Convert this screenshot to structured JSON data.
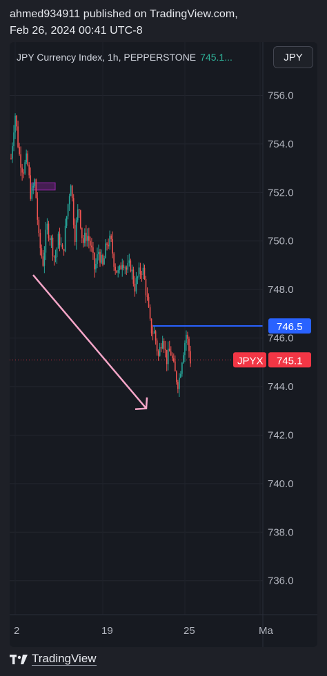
{
  "header": {
    "line1": "ahmed934911 published on TradingView.com,",
    "line2": "Feb 26, 2024 00:41 UTC-8"
  },
  "legend": {
    "symbol": "JPY Currency Index, 1h, PEPPERSTONE",
    "last_value": "745.1..."
  },
  "currency_button": "JPY",
  "footer": {
    "brand": "TradingView"
  },
  "colors": {
    "background": "#171a21",
    "bull": "#26a69a",
    "bear": "#ef5350",
    "horizontal_line": "#2962ff",
    "price_label": "#f23645",
    "arrow": "#f5a6c8",
    "box": "#9c27b0"
  },
  "icons": [
    "tradingview-logo-icon"
  ],
  "chart_data": {
    "type": "candlestick",
    "title": "JPY Currency Index, 1h, PEPPERSTONE",
    "ylim": [
      734.6,
      758.2
    ],
    "y_ticks": [
      756.0,
      754.0,
      752.0,
      750.0,
      748.0,
      746.0,
      744.0,
      742.0,
      740.0,
      738.0,
      736.0
    ],
    "x_tick_labels": [
      "2",
      "19",
      "25",
      "Ma"
    ],
    "grid": true,
    "last_price": 745.1,
    "last_price_label": "745.1",
    "symbol_tag": "JPYX",
    "horizontal_line": {
      "price": 746.5,
      "label": "746.5"
    },
    "close_path": [
      753.4,
      755.3,
      753.6,
      752.9,
      753.4,
      751.8,
      752.5,
      750.0,
      749.1,
      750.6,
      750.1,
      749.2,
      750.2,
      749.4,
      751.1,
      752.5,
      750.2,
      751.5,
      749.9,
      750.3,
      749.8,
      748.8,
      749.6,
      748.9,
      749.9,
      750.0,
      749.0,
      748.6,
      749.3,
      748.8,
      749.0,
      748.1,
      748.6,
      748.9,
      747.8,
      746.4,
      746.2,
      745.2,
      746.2,
      745.1,
      745.5,
      744.6,
      744.1,
      745.3,
      746.2,
      745.1
    ],
    "annotations": [
      {
        "type": "arrow",
        "from": [
          "start",
          748.6
        ],
        "to": [
          "after-19",
          743.1
        ]
      },
      {
        "type": "rectangle",
        "top": 752.4,
        "bottom": 752.1
      }
    ]
  }
}
